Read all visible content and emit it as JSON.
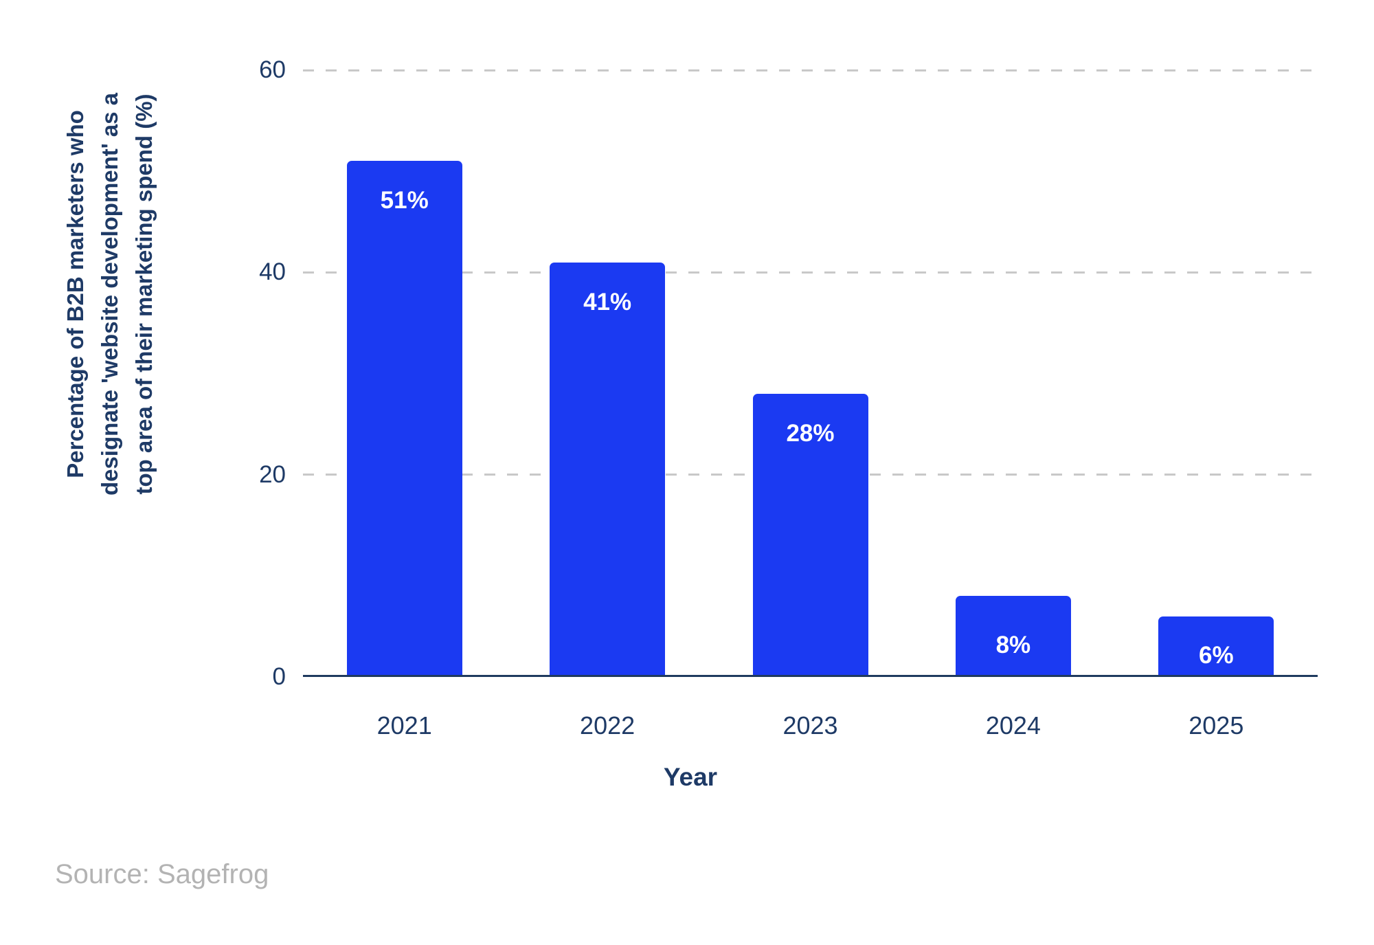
{
  "figure": {
    "source_note": "Source: Sagefrog"
  },
  "chart_data": {
    "type": "bar",
    "title": "",
    "categories": [
      "2021",
      "2022",
      "2023",
      "2024",
      "2025"
    ],
    "values": [
      51,
      41,
      28,
      8,
      6
    ],
    "bar_labels": [
      "51%",
      "41%",
      "28%",
      "8%",
      "6%"
    ],
    "xlabel": "Year",
    "ylabel": "Percentage of B2B marketers who designate 'website development' as a top area of their marketing spend (%)",
    "ylabel_lines": [
      "Percentage of B2B marketers who",
      "designate 'website development' as a",
      "top area of their marketing spend (%)"
    ],
    "yticks": [
      0,
      20,
      40,
      60
    ],
    "ylim": [
      0,
      60
    ],
    "legend": "none",
    "grid": "horizontal-dashed",
    "colors": {
      "bar": "#1b3af2",
      "bar_label": "#ffffff",
      "axis_text": "#1e3a66",
      "axis_line": "#1f3a5f",
      "gridline": "#c8c8c8",
      "source_text": "#b3b3b3",
      "background": "#ffffff"
    }
  }
}
